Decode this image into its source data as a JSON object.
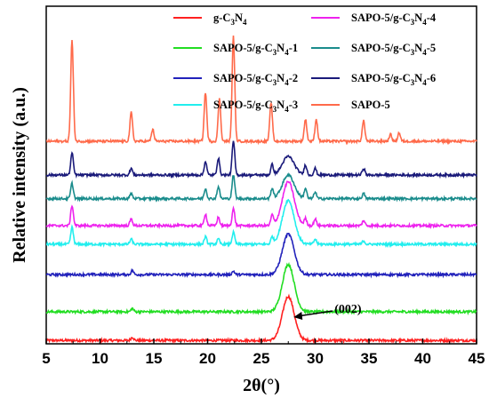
{
  "chart_data": {
    "type": "line",
    "xlabel": "2θ(°)",
    "ylabel": "Relative intensity (a.u.)",
    "xlim": [
      5,
      45
    ],
    "xticks": [
      5,
      10,
      15,
      20,
      25,
      30,
      35,
      40,
      45
    ],
    "ylim": [
      0,
      10
    ],
    "yticks_shown": false,
    "legend_position": "top",
    "annotation": {
      "text": "(002)",
      "x": 27.5
    },
    "series": [
      {
        "name": "g-C3N4",
        "label_main": "g-C",
        "sub1": "3",
        "mid": "N",
        "sub2": "4",
        "tail": "",
        "color": "#ff2020",
        "offset": 0.1,
        "peaks": [
          [
            13.0,
            0.1
          ],
          [
            27.5,
            1.3
          ]
        ]
      },
      {
        "name": "SAPO-5/g-C3N4-1",
        "label_main": "SAPO-5/g-C",
        "sub1": "3",
        "mid": "N",
        "sub2": "4",
        "tail": "-1",
        "color": "#22dd22",
        "offset": 0.95,
        "peaks": [
          [
            13.0,
            0.1
          ],
          [
            27.5,
            1.4
          ]
        ]
      },
      {
        "name": "SAPO-5/g-C3N4-2",
        "label_main": "SAPO-5/g-C",
        "sub1": "3",
        "mid": "N",
        "sub2": "4",
        "tail": "-2",
        "color": "#2222bb",
        "offset": 2.05,
        "peaks": [
          [
            13.0,
            0.12
          ],
          [
            22.4,
            0.1
          ],
          [
            27.5,
            1.2
          ]
        ]
      },
      {
        "name": "SAPO-5/g-C3N4-3",
        "label_main": "SAPO-5/g-C",
        "sub1": "3",
        "mid": "N",
        "sub2": "4",
        "tail": "-3",
        "color": "#22eeee",
        "offset": 2.95,
        "peaks": [
          [
            7.4,
            0.5
          ],
          [
            12.9,
            0.15
          ],
          [
            19.8,
            0.22
          ],
          [
            21.0,
            0.15
          ],
          [
            22.4,
            0.35
          ],
          [
            26.0,
            0.2
          ],
          [
            27.5,
            1.3
          ],
          [
            30.0,
            0.15
          ],
          [
            34.5,
            0.1
          ]
        ]
      },
      {
        "name": "SAPO-5/g-C3N4-4",
        "label_main": "SAPO-5/g-C",
        "sub1": "3",
        "mid": "N",
        "sub2": "4",
        "tail": "-4",
        "color": "#ee22ee",
        "offset": 3.5,
        "peaks": [
          [
            7.4,
            0.6
          ],
          [
            12.9,
            0.2
          ],
          [
            19.8,
            0.35
          ],
          [
            21.0,
            0.25
          ],
          [
            22.4,
            0.5
          ],
          [
            26.0,
            0.3
          ],
          [
            27.5,
            1.3
          ],
          [
            29.1,
            0.2
          ],
          [
            30.0,
            0.2
          ],
          [
            34.5,
            0.15
          ]
        ]
      },
      {
        "name": "SAPO-5/g-C3N4-5",
        "label_main": "SAPO-5/g-C",
        "sub1": "3",
        "mid": "N",
        "sub2": "4",
        "tail": "-5",
        "color": "#1a8c8c",
        "offset": 4.3,
        "peaks": [
          [
            7.4,
            0.45
          ],
          [
            12.9,
            0.15
          ],
          [
            19.8,
            0.3
          ],
          [
            21.0,
            0.35
          ],
          [
            22.4,
            0.7
          ],
          [
            26.0,
            0.3
          ],
          [
            27.5,
            0.7
          ],
          [
            29.1,
            0.3
          ],
          [
            30.0,
            0.2
          ],
          [
            34.5,
            0.15
          ]
        ]
      },
      {
        "name": "SAPO-5/g-C3N4-6",
        "label_main": "SAPO-5/g-C",
        "sub1": "3",
        "mid": "N",
        "sub2": "4",
        "tail": "-6",
        "color": "#1a1a7a",
        "offset": 5.0,
        "peaks": [
          [
            7.4,
            0.65
          ],
          [
            12.9,
            0.2
          ],
          [
            19.8,
            0.4
          ],
          [
            21.0,
            0.5
          ],
          [
            22.4,
            1.0
          ],
          [
            26.0,
            0.3
          ],
          [
            27.5,
            0.55
          ],
          [
            29.1,
            0.3
          ],
          [
            30.0,
            0.2
          ],
          [
            34.5,
            0.2
          ]
        ]
      },
      {
        "name": "SAPO-5",
        "label_main": "SAPO-5",
        "sub1": "",
        "mid": "",
        "sub2": "",
        "tail": "",
        "color": "#ff6a4a",
        "offset": 6.0,
        "peaks": [
          [
            7.4,
            3.0
          ],
          [
            12.9,
            0.85
          ],
          [
            14.9,
            0.35
          ],
          [
            19.8,
            1.45
          ],
          [
            21.1,
            1.25
          ],
          [
            22.4,
            3.1
          ],
          [
            25.9,
            1.15
          ],
          [
            29.1,
            0.65
          ],
          [
            30.1,
            0.65
          ],
          [
            34.5,
            0.6
          ],
          [
            37.0,
            0.2
          ],
          [
            37.8,
            0.25
          ]
        ]
      }
    ]
  }
}
